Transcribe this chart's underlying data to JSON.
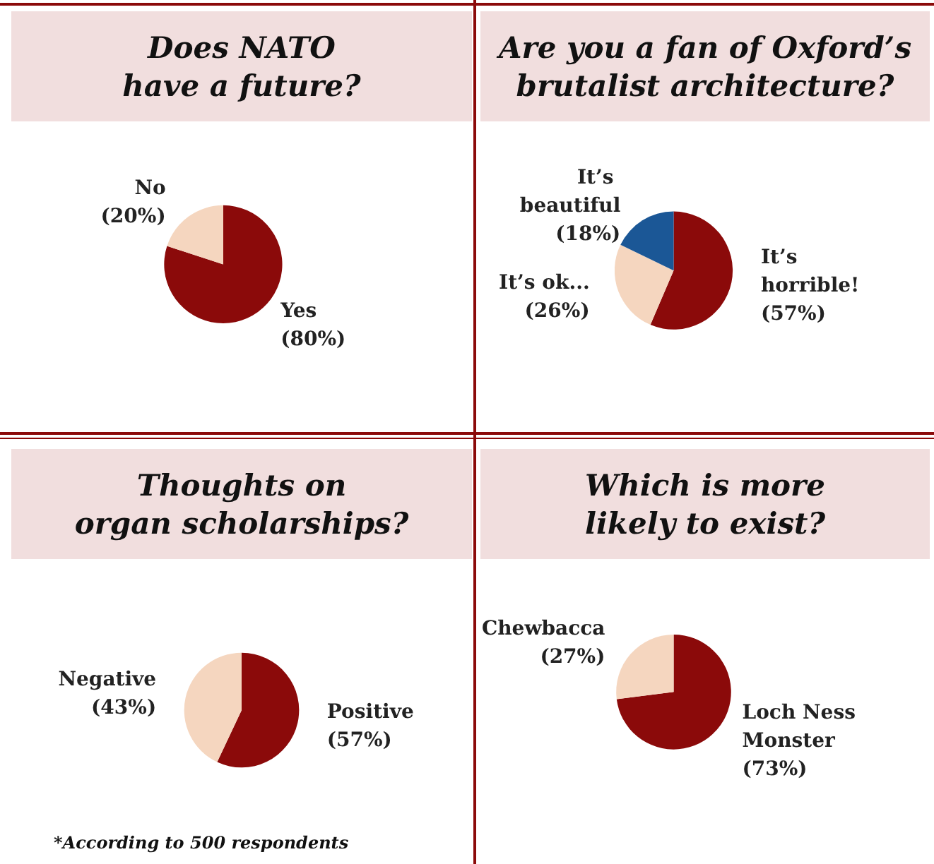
{
  "chart_data": [
    {
      "type": "pie",
      "title": "Does NATO\nhave a future?",
      "categories": [
        "Yes",
        "No"
      ],
      "values": [
        80,
        20
      ],
      "colors": [
        "#8b0a0a",
        "#f5d6bf"
      ],
      "value_labels": [
        "(80%)",
        "(20%)"
      ],
      "legend": false
    },
    {
      "type": "pie",
      "title": "Are you a fan of Oxford’s\nbrutalist architecture?",
      "categories": [
        "It’s horrible!",
        "It’s ok...",
        "It’s beautiful"
      ],
      "values": [
        57,
        26,
        18
      ],
      "colors": [
        "#8b0a0a",
        "#f5d6bf",
        "#1b5796"
      ],
      "value_labels": [
        "(57%)",
        "(26%)",
        "(18%)"
      ],
      "legend": false
    },
    {
      "type": "pie",
      "title": "Thoughts on\norgan scholarships?",
      "categories": [
        "Positive",
        "Negative"
      ],
      "values": [
        57,
        43
      ],
      "colors": [
        "#8b0a0a",
        "#f5d6bf"
      ],
      "value_labels": [
        "(57%)",
        "(43%)"
      ],
      "legend": false,
      "annotations": [
        "*According to 500 respondents"
      ]
    },
    {
      "type": "pie",
      "title": "Which is more\nlikely to exist?",
      "categories": [
        "Loch Ness Monster",
        "Chewbacca"
      ],
      "values": [
        73,
        27
      ],
      "colors": [
        "#8b0a0a",
        "#f5d6bf"
      ],
      "value_labels": [
        "(73%)",
        "(27%)"
      ],
      "legend": false
    }
  ]
}
